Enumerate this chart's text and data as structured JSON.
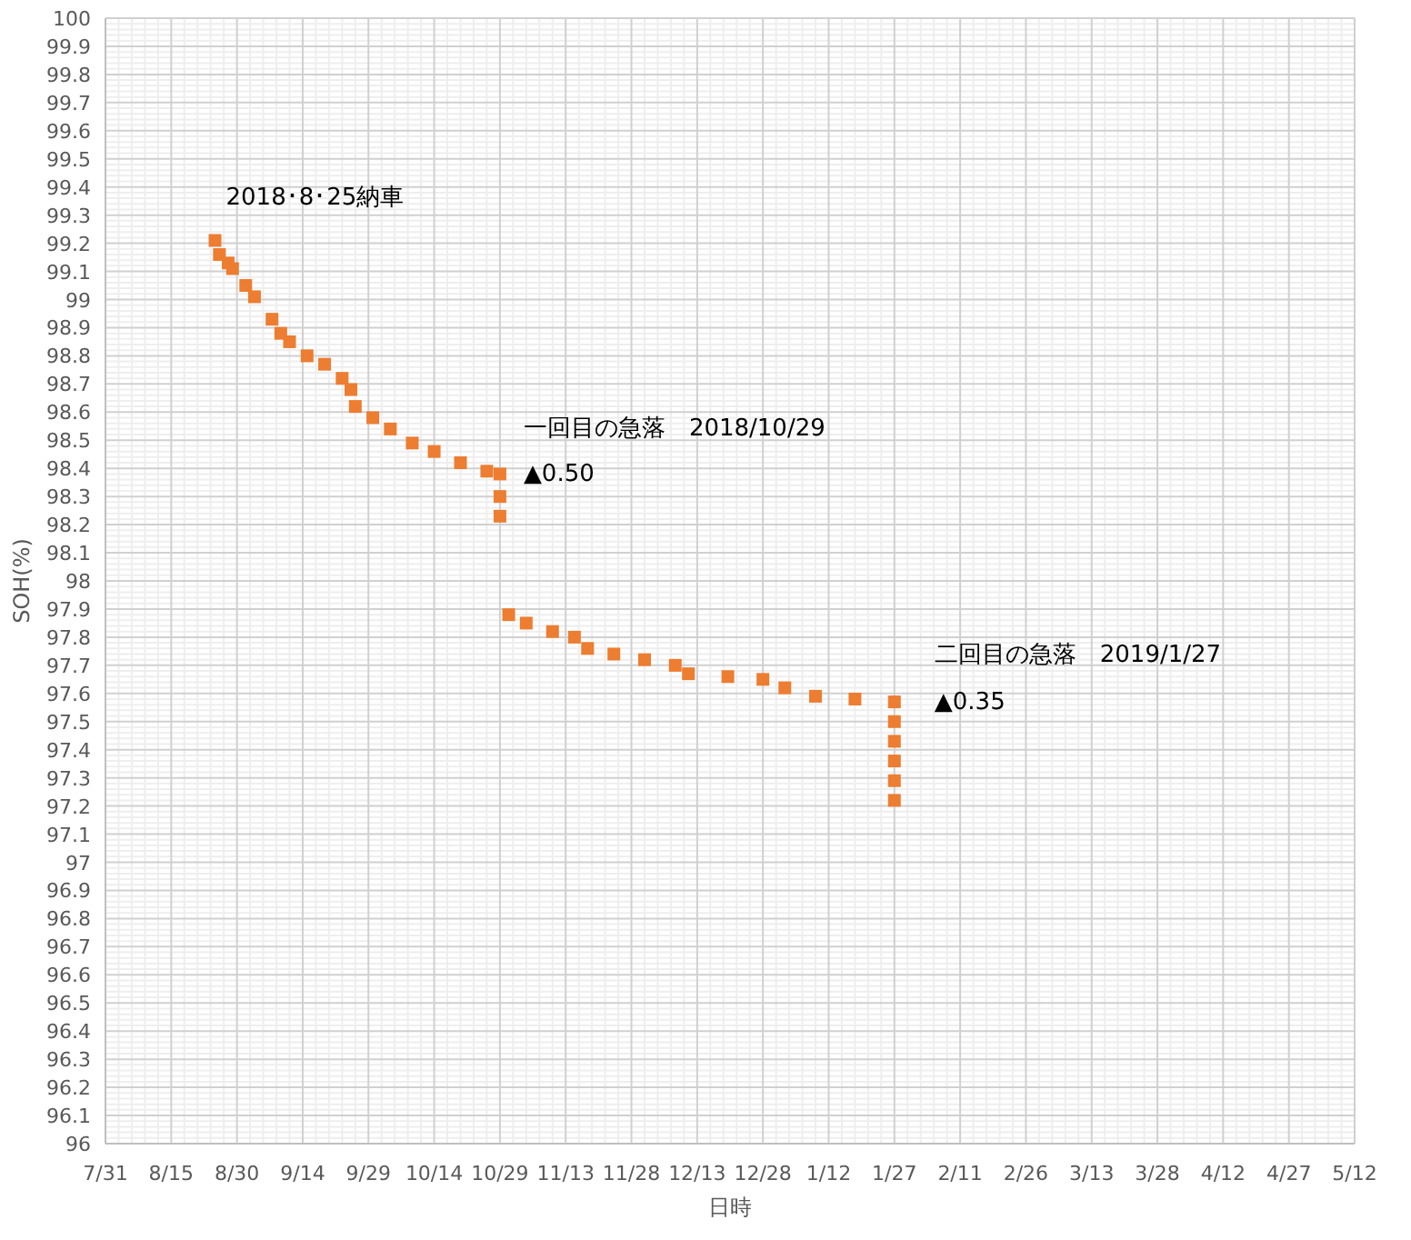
{
  "chart_data": {
    "type": "scatter",
    "xlabel": "日時",
    "ylabel": "SOH(%)",
    "marker": "square",
    "grid": true,
    "x": [
      "2018-08-25",
      "2018-08-26",
      "2018-08-28",
      "2018-08-29",
      "2018-09-01",
      "2018-09-03",
      "2018-09-07",
      "2018-09-09",
      "2018-09-11",
      "2018-09-15",
      "2018-09-19",
      "2018-09-23",
      "2018-09-25",
      "2018-09-26",
      "2018-09-30",
      "2018-10-04",
      "2018-10-09",
      "2018-10-14",
      "2018-10-20",
      "2018-10-26",
      "2018-10-29",
      "2018-10-29",
      "2018-10-29",
      "2018-10-31",
      "2018-11-04",
      "2018-11-10",
      "2018-11-15",
      "2018-11-18",
      "2018-11-24",
      "2018-12-01",
      "2018-12-08",
      "2018-12-11",
      "2018-12-20",
      "2018-12-28",
      "2019-01-02",
      "2019-01-09",
      "2019-01-18",
      "2019-01-27",
      "2019-01-27",
      "2019-01-27",
      "2019-01-27",
      "2019-01-27",
      "2019-01-27"
    ],
    "series": [
      {
        "color": "#ed7d31",
        "values": [
          99.21,
          99.16,
          99.13,
          99.11,
          99.05,
          99.01,
          98.93,
          98.88,
          98.85,
          98.8,
          98.77,
          98.72,
          98.68,
          98.62,
          98.58,
          98.54,
          98.49,
          98.46,
          98.42,
          98.39,
          98.38,
          98.3,
          98.23,
          97.88,
          97.85,
          97.82,
          97.8,
          97.76,
          97.74,
          97.72,
          97.7,
          97.67,
          97.66,
          97.65,
          97.62,
          97.59,
          97.58,
          97.57,
          97.5,
          97.43,
          97.36,
          97.29,
          97.22
        ]
      }
    ],
    "xlim": [
      "2018-07-31",
      "2019-05-12"
    ],
    "xticks": [
      {
        "value": "2018-07-31",
        "label": "7/31"
      },
      {
        "value": "2018-08-15",
        "label": "8/15"
      },
      {
        "value": "2018-08-30",
        "label": "8/30"
      },
      {
        "value": "2018-09-14",
        "label": "9/14"
      },
      {
        "value": "2018-09-29",
        "label": "9/29"
      },
      {
        "value": "2018-10-14",
        "label": "10/14"
      },
      {
        "value": "2018-10-29",
        "label": "10/29"
      },
      {
        "value": "2018-11-13",
        "label": "11/13"
      },
      {
        "value": "2018-11-28",
        "label": "11/28"
      },
      {
        "value": "2018-12-13",
        "label": "12/13"
      },
      {
        "value": "2018-12-28",
        "label": "12/28"
      },
      {
        "value": "2019-01-12",
        "label": "1/12"
      },
      {
        "value": "2019-01-27",
        "label": "1/27"
      },
      {
        "value": "2019-02-11",
        "label": "2/11"
      },
      {
        "value": "2019-02-26",
        "label": "2/26"
      },
      {
        "value": "2019-03-13",
        "label": "3/13"
      },
      {
        "value": "2019-03-28",
        "label": "3/28"
      },
      {
        "value": "2019-04-12",
        "label": "4/12"
      },
      {
        "value": "2019-04-27",
        "label": "4/27"
      },
      {
        "value": "2019-05-12",
        "label": "5/12"
      }
    ],
    "ylim": [
      96,
      100
    ],
    "yticks": [
      96,
      96.1,
      96.2,
      96.3,
      96.4,
      96.5,
      96.6,
      96.7,
      96.8,
      96.9,
      97,
      97.1,
      97.2,
      97.3,
      97.4,
      97.5,
      97.6,
      97.7,
      97.8,
      97.9,
      98,
      98.1,
      98.2,
      98.3,
      98.4,
      98.5,
      98.6,
      98.7,
      98.8,
      98.9,
      99,
      99.1,
      99.2,
      99.3,
      99.4,
      99.5,
      99.6,
      99.7,
      99.8,
      99.9,
      100
    ],
    "annotations": [
      {
        "text": "2018･8･25納車",
        "x": "2018-08-25",
        "y": 99.21
      },
      {
        "text": "一回目の急落　2018/10/29",
        "x": "2018-10-29",
        "y": 98.38
      },
      {
        "text": "▲0.50",
        "x": "2018-10-29",
        "y": 98.38
      },
      {
        "text": "二回目の急落　2019/1/27",
        "x": "2019-01-27",
        "y": 97.57
      },
      {
        "text": "▲0.35",
        "x": "2019-01-27",
        "y": 97.57
      }
    ]
  }
}
